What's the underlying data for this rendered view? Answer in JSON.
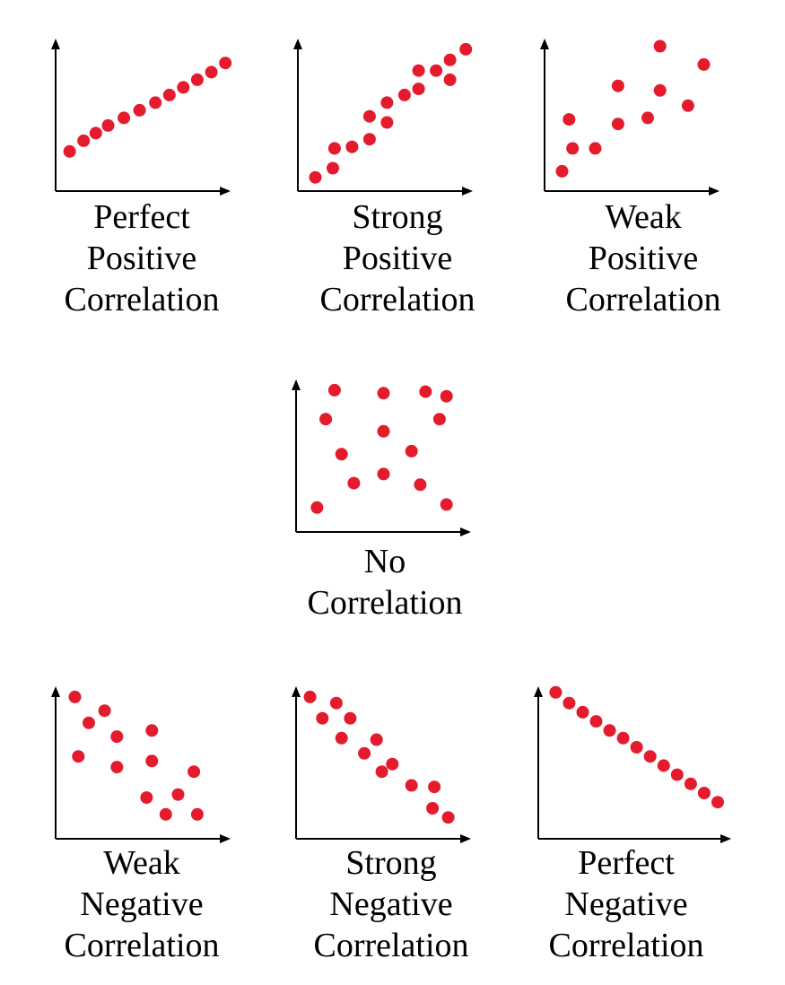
{
  "colors": {
    "point": "#e41b2d",
    "axis": "#000000",
    "text": "#000000",
    "background": "#ffffff"
  },
  "chart_data": [
    {
      "type": "scatter",
      "name": "perfect-positive",
      "caption": [
        "Perfect",
        "Positive",
        "Correlation"
      ],
      "xlim": [
        0,
        10
      ],
      "ylim": [
        0,
        10
      ],
      "points": [
        [
          0.8,
          2.6
        ],
        [
          1.6,
          3.3
        ],
        [
          2.3,
          3.8
        ],
        [
          3.0,
          4.3
        ],
        [
          3.9,
          4.8
        ],
        [
          4.8,
          5.3
        ],
        [
          5.7,
          5.8
        ],
        [
          6.5,
          6.3
        ],
        [
          7.3,
          6.8
        ],
        [
          8.1,
          7.3
        ],
        [
          8.9,
          7.8
        ],
        [
          9.7,
          8.4
        ]
      ]
    },
    {
      "type": "scatter",
      "name": "strong-positive",
      "caption": [
        "Strong",
        "Positive",
        "Correlation"
      ],
      "xlim": [
        0,
        10
      ],
      "ylim": [
        0,
        10
      ],
      "points": [
        [
          1.0,
          0.9
        ],
        [
          2.0,
          1.5
        ],
        [
          2.1,
          2.8
        ],
        [
          3.1,
          2.9
        ],
        [
          4.1,
          3.4
        ],
        [
          4.1,
          4.9
        ],
        [
          5.1,
          4.5
        ],
        [
          5.1,
          5.8
        ],
        [
          6.1,
          6.3
        ],
        [
          6.9,
          6.7
        ],
        [
          6.9,
          7.9
        ],
        [
          7.9,
          7.9
        ],
        [
          8.7,
          7.3
        ],
        [
          8.7,
          8.6
        ],
        [
          9.6,
          9.3
        ]
      ]
    },
    {
      "type": "scatter",
      "name": "weak-positive",
      "caption": [
        "Weak",
        "Positive",
        "Correlation"
      ],
      "xlim": [
        0,
        10
      ],
      "ylim": [
        0,
        10
      ],
      "points": [
        [
          1.0,
          1.3
        ],
        [
          1.4,
          4.7
        ],
        [
          1.6,
          2.8
        ],
        [
          2.9,
          2.8
        ],
        [
          4.2,
          4.4
        ],
        [
          4.2,
          6.9
        ],
        [
          5.9,
          4.8
        ],
        [
          6.6,
          9.5
        ],
        [
          6.6,
          6.6
        ],
        [
          8.2,
          5.6
        ],
        [
          9.1,
          8.3
        ]
      ]
    },
    {
      "type": "scatter",
      "name": "no-correlation",
      "caption": [
        "No",
        "Correlation"
      ],
      "xlim": [
        0,
        10
      ],
      "ylim": [
        0,
        10
      ],
      "points": [
        [
          1.2,
          1.6
        ],
        [
          1.7,
          7.4
        ],
        [
          2.2,
          9.3
        ],
        [
          2.6,
          5.1
        ],
        [
          3.3,
          3.2
        ],
        [
          5.0,
          9.1
        ],
        [
          5.0,
          6.6
        ],
        [
          5.0,
          3.8
        ],
        [
          6.6,
          5.3
        ],
        [
          7.1,
          3.1
        ],
        [
          7.4,
          9.2
        ],
        [
          8.2,
          7.4
        ],
        [
          8.6,
          8.9
        ],
        [
          8.6,
          1.8
        ]
      ]
    },
    {
      "type": "scatter",
      "name": "weak-negative",
      "caption": [
        "Weak",
        "Negative",
        "Correlation"
      ],
      "xlim": [
        0,
        10
      ],
      "ylim": [
        0,
        10
      ],
      "points": [
        [
          1.1,
          9.3
        ],
        [
          1.3,
          5.4
        ],
        [
          1.9,
          7.6
        ],
        [
          2.8,
          8.4
        ],
        [
          3.5,
          6.7
        ],
        [
          3.5,
          4.7
        ],
        [
          5.2,
          2.7
        ],
        [
          5.5,
          7.1
        ],
        [
          5.5,
          5.1
        ],
        [
          6.3,
          1.6
        ],
        [
          7.0,
          2.9
        ],
        [
          7.9,
          4.4
        ],
        [
          8.1,
          1.6
        ]
      ]
    },
    {
      "type": "scatter",
      "name": "strong-negative",
      "caption": [
        "Strong",
        "Negative",
        "Correlation"
      ],
      "xlim": [
        0,
        10
      ],
      "ylim": [
        0,
        10
      ],
      "points": [
        [
          0.8,
          9.3
        ],
        [
          1.5,
          7.9
        ],
        [
          2.3,
          8.9
        ],
        [
          2.6,
          6.6
        ],
        [
          3.1,
          7.9
        ],
        [
          3.9,
          5.6
        ],
        [
          4.6,
          6.5
        ],
        [
          4.9,
          4.4
        ],
        [
          5.5,
          4.9
        ],
        [
          6.6,
          3.5
        ],
        [
          7.8,
          2.0
        ],
        [
          7.9,
          3.4
        ],
        [
          8.7,
          1.4
        ]
      ]
    },
    {
      "type": "scatter",
      "name": "perfect-negative",
      "caption": [
        "Perfect",
        "Negative",
        "Correlation"
      ],
      "xlim": [
        0,
        10
      ],
      "ylim": [
        0,
        10
      ],
      "points": [
        [
          0.9,
          9.6
        ],
        [
          1.6,
          8.9
        ],
        [
          2.3,
          8.3
        ],
        [
          3.0,
          7.7
        ],
        [
          3.7,
          7.1
        ],
        [
          4.4,
          6.6
        ],
        [
          5.1,
          6.0
        ],
        [
          5.8,
          5.4
        ],
        [
          6.5,
          4.8
        ],
        [
          7.2,
          4.2
        ],
        [
          7.9,
          3.6
        ],
        [
          8.6,
          3.0
        ],
        [
          9.3,
          2.4
        ]
      ]
    }
  ]
}
